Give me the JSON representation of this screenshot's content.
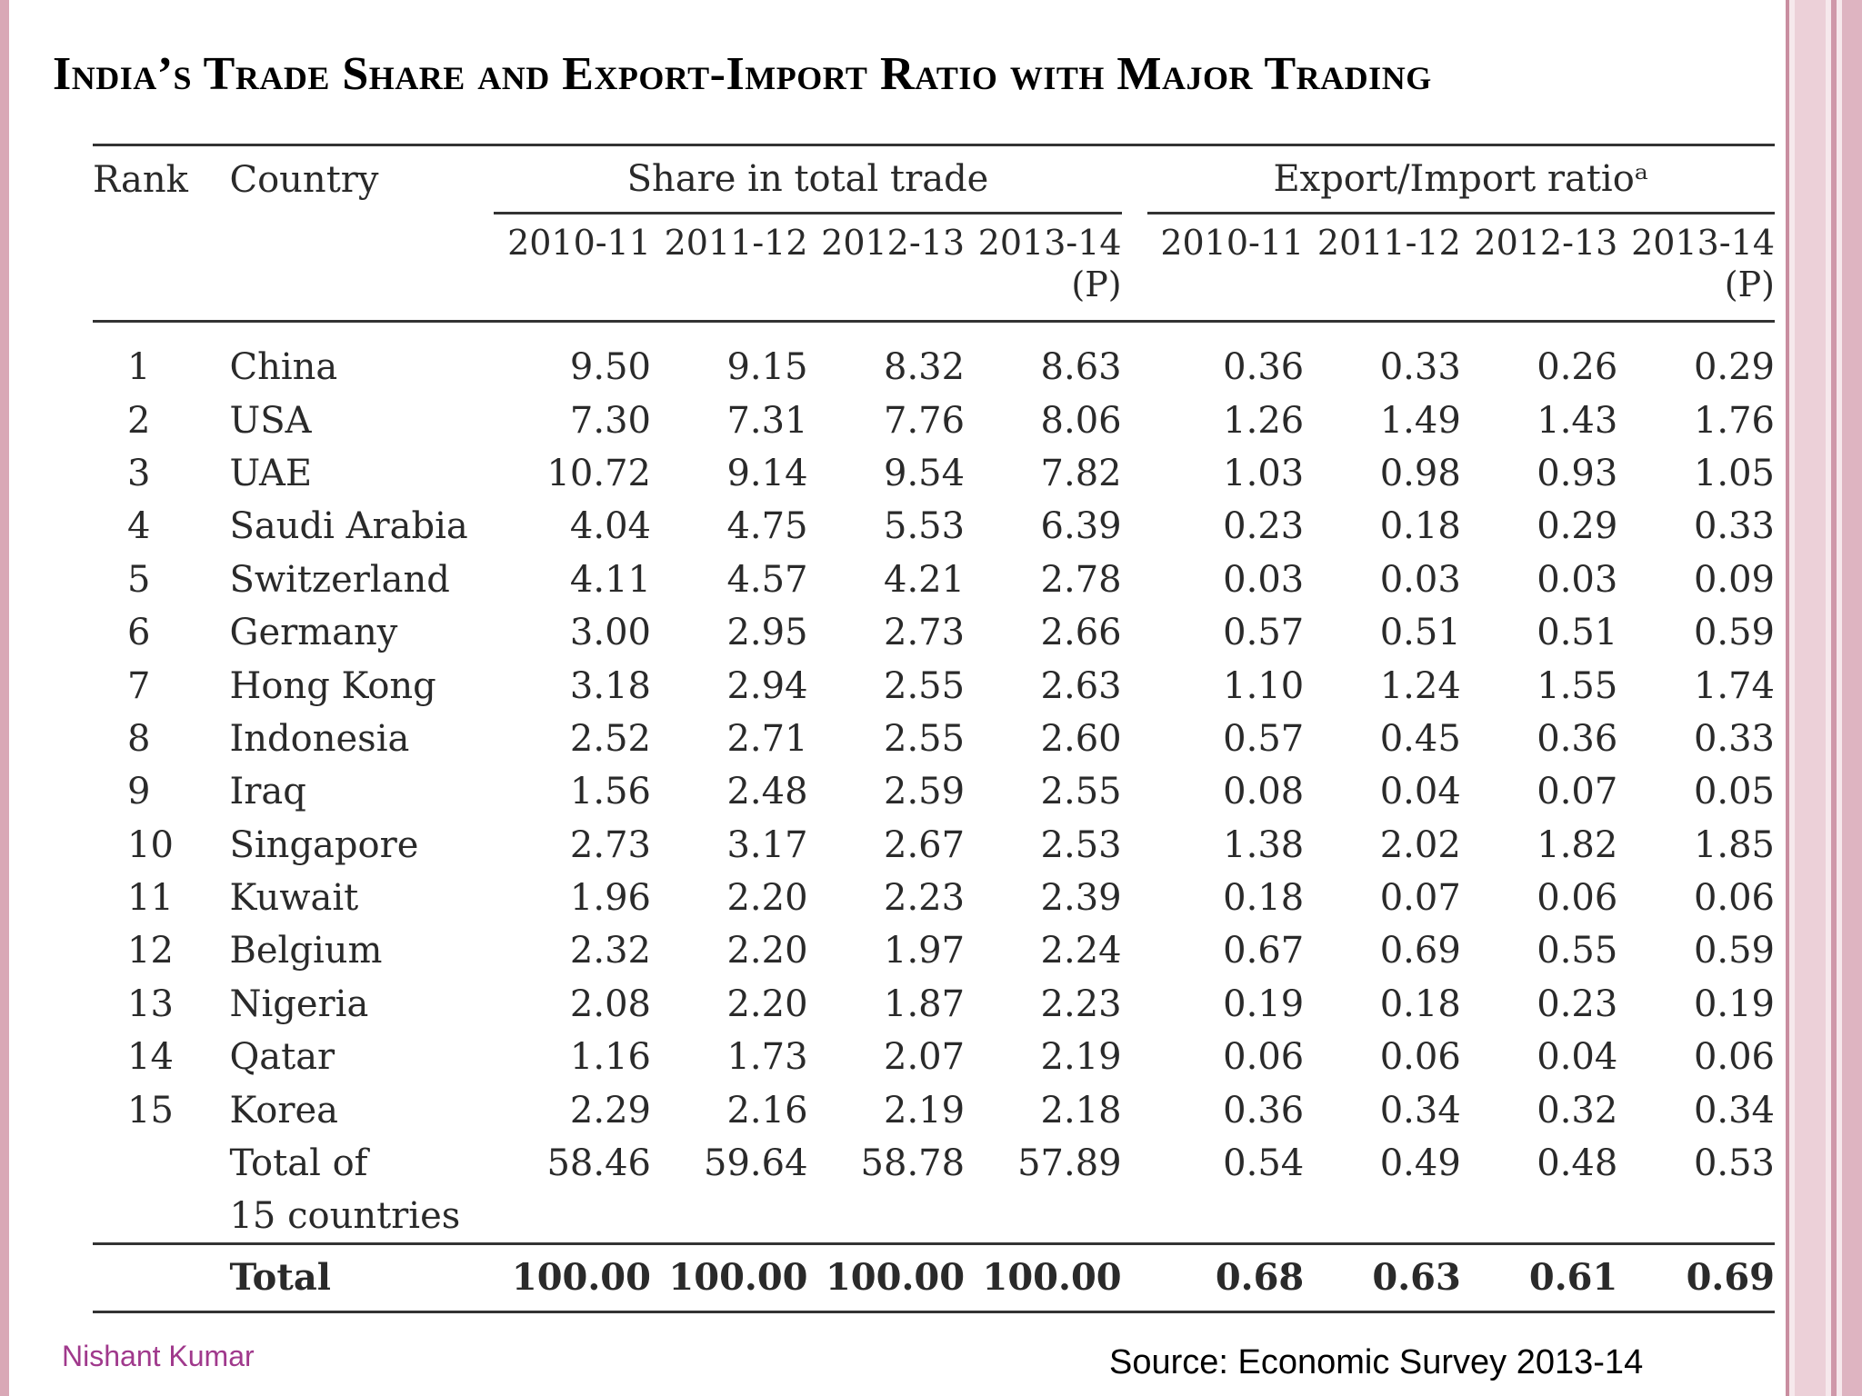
{
  "title": "India’s Trade Share and Export-Import Ratio with Major Trading",
  "table": {
    "headers": {
      "rank": "Rank",
      "country": "Country",
      "share_group": "Share in total trade",
      "ratio_group": "Export/Import ratioᵃ",
      "years": [
        "2010-11",
        "2011-12",
        "2012-13",
        "2013-14 (P)"
      ]
    },
    "rows": [
      {
        "rank": "1",
        "country": "China",
        "share": [
          "9.50",
          "9.15",
          "8.32",
          "8.63"
        ],
        "ratio": [
          "0.36",
          "0.33",
          "0.26",
          "0.29"
        ]
      },
      {
        "rank": "2",
        "country": "USA",
        "share": [
          "7.30",
          "7.31",
          "7.76",
          "8.06"
        ],
        "ratio": [
          "1.26",
          "1.49",
          "1.43",
          "1.76"
        ]
      },
      {
        "rank": "3",
        "country": "UAE",
        "share": [
          "10.72",
          "9.14",
          "9.54",
          "7.82"
        ],
        "ratio": [
          "1.03",
          "0.98",
          "0.93",
          "1.05"
        ]
      },
      {
        "rank": "4",
        "country": "Saudi Arabia",
        "share": [
          "4.04",
          "4.75",
          "5.53",
          "6.39"
        ],
        "ratio": [
          "0.23",
          "0.18",
          "0.29",
          "0.33"
        ]
      },
      {
        "rank": "5",
        "country": "Switzerland",
        "share": [
          "4.11",
          "4.57",
          "4.21",
          "2.78"
        ],
        "ratio": [
          "0.03",
          "0.03",
          "0.03",
          "0.09"
        ]
      },
      {
        "rank": "6",
        "country": "Germany",
        "share": [
          "3.00",
          "2.95",
          "2.73",
          "2.66"
        ],
        "ratio": [
          "0.57",
          "0.51",
          "0.51",
          "0.59"
        ]
      },
      {
        "rank": "7",
        "country": "Hong Kong",
        "share": [
          "3.18",
          "2.94",
          "2.55",
          "2.63"
        ],
        "ratio": [
          "1.10",
          "1.24",
          "1.55",
          "1.74"
        ]
      },
      {
        "rank": "8",
        "country": "Indonesia",
        "share": [
          "2.52",
          "2.71",
          "2.55",
          "2.60"
        ],
        "ratio": [
          "0.57",
          "0.45",
          "0.36",
          "0.33"
        ]
      },
      {
        "rank": "9",
        "country": "Iraq",
        "share": [
          "1.56",
          "2.48",
          "2.59",
          "2.55"
        ],
        "ratio": [
          "0.08",
          "0.04",
          "0.07",
          "0.05"
        ]
      },
      {
        "rank": "10",
        "country": "Singapore",
        "share": [
          "2.73",
          "3.17",
          "2.67",
          "2.53"
        ],
        "ratio": [
          "1.38",
          "2.02",
          "1.82",
          "1.85"
        ]
      },
      {
        "rank": "11",
        "country": "Kuwait",
        "share": [
          "1.96",
          "2.20",
          "2.23",
          "2.39"
        ],
        "ratio": [
          "0.18",
          "0.07",
          "0.06",
          "0.06"
        ]
      },
      {
        "rank": "12",
        "country": "Belgium",
        "share": [
          "2.32",
          "2.20",
          "1.97",
          "2.24"
        ],
        "ratio": [
          "0.67",
          "0.69",
          "0.55",
          "0.59"
        ]
      },
      {
        "rank": "13",
        "country": "Nigeria",
        "share": [
          "2.08",
          "2.20",
          "1.87",
          "2.23"
        ],
        "ratio": [
          "0.19",
          "0.18",
          "0.23",
          "0.19"
        ]
      },
      {
        "rank": "14",
        "country": "Qatar",
        "share": [
          "1.16",
          "1.73",
          "2.07",
          "2.19"
        ],
        "ratio": [
          "0.06",
          "0.06",
          "0.04",
          "0.06"
        ]
      },
      {
        "rank": "15",
        "country": "Korea",
        "share": [
          "2.29",
          "2.16",
          "2.19",
          "2.18"
        ],
        "ratio": [
          "0.36",
          "0.34",
          "0.32",
          "0.34"
        ]
      }
    ],
    "subtotal": {
      "label_line1": "Total of",
      "label_line2": "15 countries",
      "share": [
        "58.46",
        "59.64",
        "58.78",
        "57.89"
      ],
      "ratio": [
        "0.54",
        "0.49",
        "0.48",
        "0.53"
      ]
    },
    "total": {
      "label": "Total",
      "share": [
        "100.00",
        "100.00",
        "100.00",
        "100.00"
      ],
      "ratio": [
        "0.68",
        "0.63",
        "0.61",
        "0.69"
      ]
    }
  },
  "footer": {
    "author": "Nishant Kumar",
    "source": "Source: Economic Survey 2013-14"
  }
}
